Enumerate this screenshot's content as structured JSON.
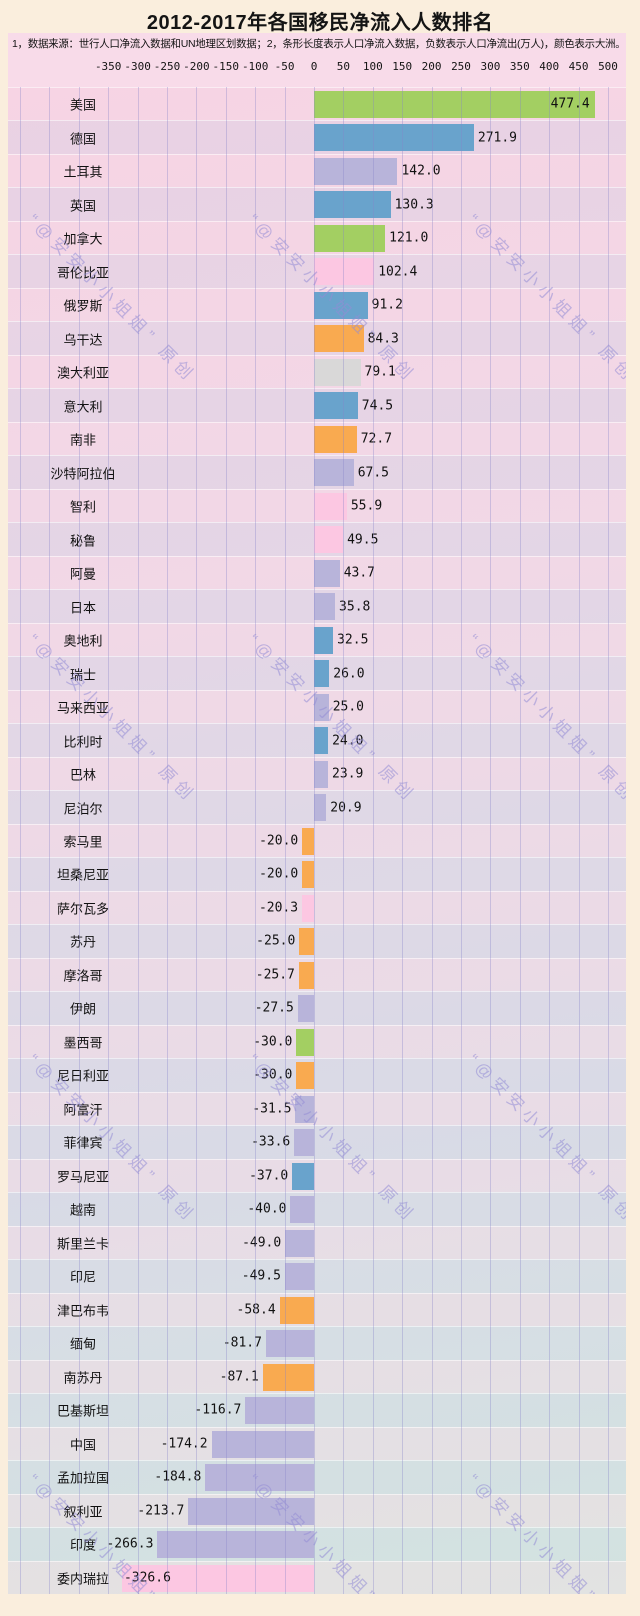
{
  "title": "2012-2017年各国移民净流入人数排名",
  "subtitle": "1，数据来源：世行人口净流入数据和UN地理区划数据；2，条形长度表示人口净流入数据，负数表示人口净流出(万人)，颜色表示大洲。",
  "watermark_text": "“@安安小小姐姐”  原创",
  "colors": {
    "page_bg": "#faeedd",
    "header_pink": "#f8dbe9",
    "grid": "#8884c8",
    "green": "#a3cf62",
    "blue": "#69a3cc",
    "lavender": "#b8b4da",
    "pink": "#fcc7e2",
    "orange": "#f9aa50",
    "grey": "#d9d8d8"
  },
  "chart_data": {
    "type": "bar",
    "orientation": "horizontal",
    "unit": "万人",
    "title": "2012-2017年各国移民净流入人数排名",
    "x_ticks": [
      -350,
      -300,
      -250,
      -200,
      -150,
      -100,
      -50,
      0,
      50,
      100,
      150,
      200,
      250,
      300,
      350,
      400,
      450,
      500
    ],
    "grid": true,
    "color_legend_note": "颜色表示大洲",
    "countries": [
      {
        "name": "美国",
        "value": 477.4,
        "color": "green"
      },
      {
        "name": "德国",
        "value": 271.9,
        "color": "blue"
      },
      {
        "name": "土耳其",
        "value": 142.0,
        "color": "lavender"
      },
      {
        "name": "英国",
        "value": 130.3,
        "color": "blue"
      },
      {
        "name": "加拿大",
        "value": 121.0,
        "color": "green"
      },
      {
        "name": "哥伦比亚",
        "value": 102.4,
        "color": "pink"
      },
      {
        "name": "俄罗斯",
        "value": 91.2,
        "color": "blue"
      },
      {
        "name": "乌干达",
        "value": 84.3,
        "color": "orange"
      },
      {
        "name": "澳大利亚",
        "value": 79.1,
        "color": "grey"
      },
      {
        "name": "意大利",
        "value": 74.5,
        "color": "blue"
      },
      {
        "name": "南非",
        "value": 72.7,
        "color": "orange"
      },
      {
        "name": "沙特阿拉伯",
        "value": 67.5,
        "color": "lavender"
      },
      {
        "name": "智利",
        "value": 55.9,
        "color": "pink"
      },
      {
        "name": "秘鲁",
        "value": 49.5,
        "color": "pink"
      },
      {
        "name": "阿曼",
        "value": 43.7,
        "color": "lavender"
      },
      {
        "name": "日本",
        "value": 35.8,
        "color": "lavender"
      },
      {
        "name": "奥地利",
        "value": 32.5,
        "color": "blue"
      },
      {
        "name": "瑞士",
        "value": 26.0,
        "color": "blue"
      },
      {
        "name": "马来西亚",
        "value": 25.0,
        "color": "lavender"
      },
      {
        "name": "比利时",
        "value": 24.0,
        "color": "blue"
      },
      {
        "name": "巴林",
        "value": 23.9,
        "color": "lavender"
      },
      {
        "name": "尼泊尔",
        "value": 20.9,
        "color": "lavender"
      },
      {
        "name": "索马里",
        "value": -20.0,
        "color": "orange"
      },
      {
        "name": "坦桑尼亚",
        "value": -20.0,
        "color": "orange"
      },
      {
        "name": "萨尔瓦多",
        "value": -20.3,
        "color": "pink"
      },
      {
        "name": "苏丹",
        "value": -25.0,
        "color": "orange"
      },
      {
        "name": "摩洛哥",
        "value": -25.7,
        "color": "orange"
      },
      {
        "name": "伊朗",
        "value": -27.5,
        "color": "lavender"
      },
      {
        "name": "墨西哥",
        "value": -30.0,
        "color": "green"
      },
      {
        "name": "尼日利亚",
        "value": -30.0,
        "color": "orange"
      },
      {
        "name": "阿富汗",
        "value": -31.5,
        "color": "lavender"
      },
      {
        "name": "菲律宾",
        "value": -33.6,
        "color": "lavender"
      },
      {
        "name": "罗马尼亚",
        "value": -37.0,
        "color": "blue"
      },
      {
        "name": "越南",
        "value": -40.0,
        "color": "lavender"
      },
      {
        "name": "斯里兰卡",
        "value": -49.0,
        "color": "lavender"
      },
      {
        "name": "印尼",
        "value": -49.5,
        "color": "lavender"
      },
      {
        "name": "津巴布韦",
        "value": -58.4,
        "color": "orange"
      },
      {
        "name": "缅甸",
        "value": -81.7,
        "color": "lavender"
      },
      {
        "name": "南苏丹",
        "value": -87.1,
        "color": "orange"
      },
      {
        "name": "巴基斯坦",
        "value": -116.7,
        "color": "lavender"
      },
      {
        "name": "中国",
        "value": -174.2,
        "color": "lavender"
      },
      {
        "name": "孟加拉国",
        "value": -184.8,
        "color": "lavender"
      },
      {
        "name": "叙利亚",
        "value": -213.7,
        "color": "lavender"
      },
      {
        "name": "印度",
        "value": -266.3,
        "color": "lavender"
      },
      {
        "name": "委内瑞拉",
        "value": -326.6,
        "color": "pink"
      }
    ]
  }
}
